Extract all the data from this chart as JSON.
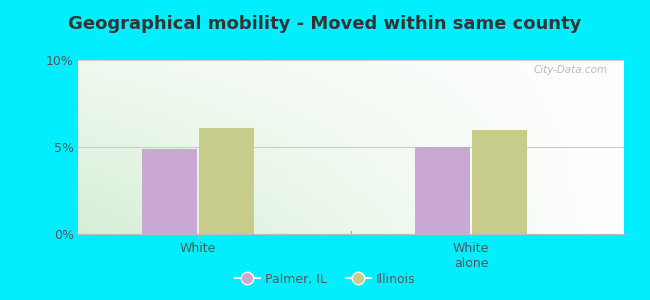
{
  "title": "Geographical mobility - Moved within same county",
  "groups": [
    "White",
    "White\nalone"
  ],
  "group_positions": [
    0.22,
    0.72
  ],
  "palmer_values": [
    4.9,
    5.0
  ],
  "illinois_values": [
    6.1,
    6.0
  ],
  "palmer_color": "#c9a8d4",
  "illinois_color": "#c8cc8a",
  "ylim": [
    0,
    10
  ],
  "yticks": [
    0,
    5,
    10
  ],
  "ytick_labels": [
    "0%",
    "5%",
    "10%"
  ],
  "bar_width": 0.1,
  "bar_gap": 0.005,
  "legend_palmer": "Palmer, IL",
  "legend_illinois": "Illinois",
  "outer_bg": "#00eeff",
  "watermark": "City-Data.com",
  "title_fontsize": 13,
  "tick_color": "#555555",
  "grid_color": "#cccccc",
  "bg_left_color": "#d4ecd0",
  "bg_right_color": "#f0faf0",
  "bg_top_color": "#f8fff8"
}
